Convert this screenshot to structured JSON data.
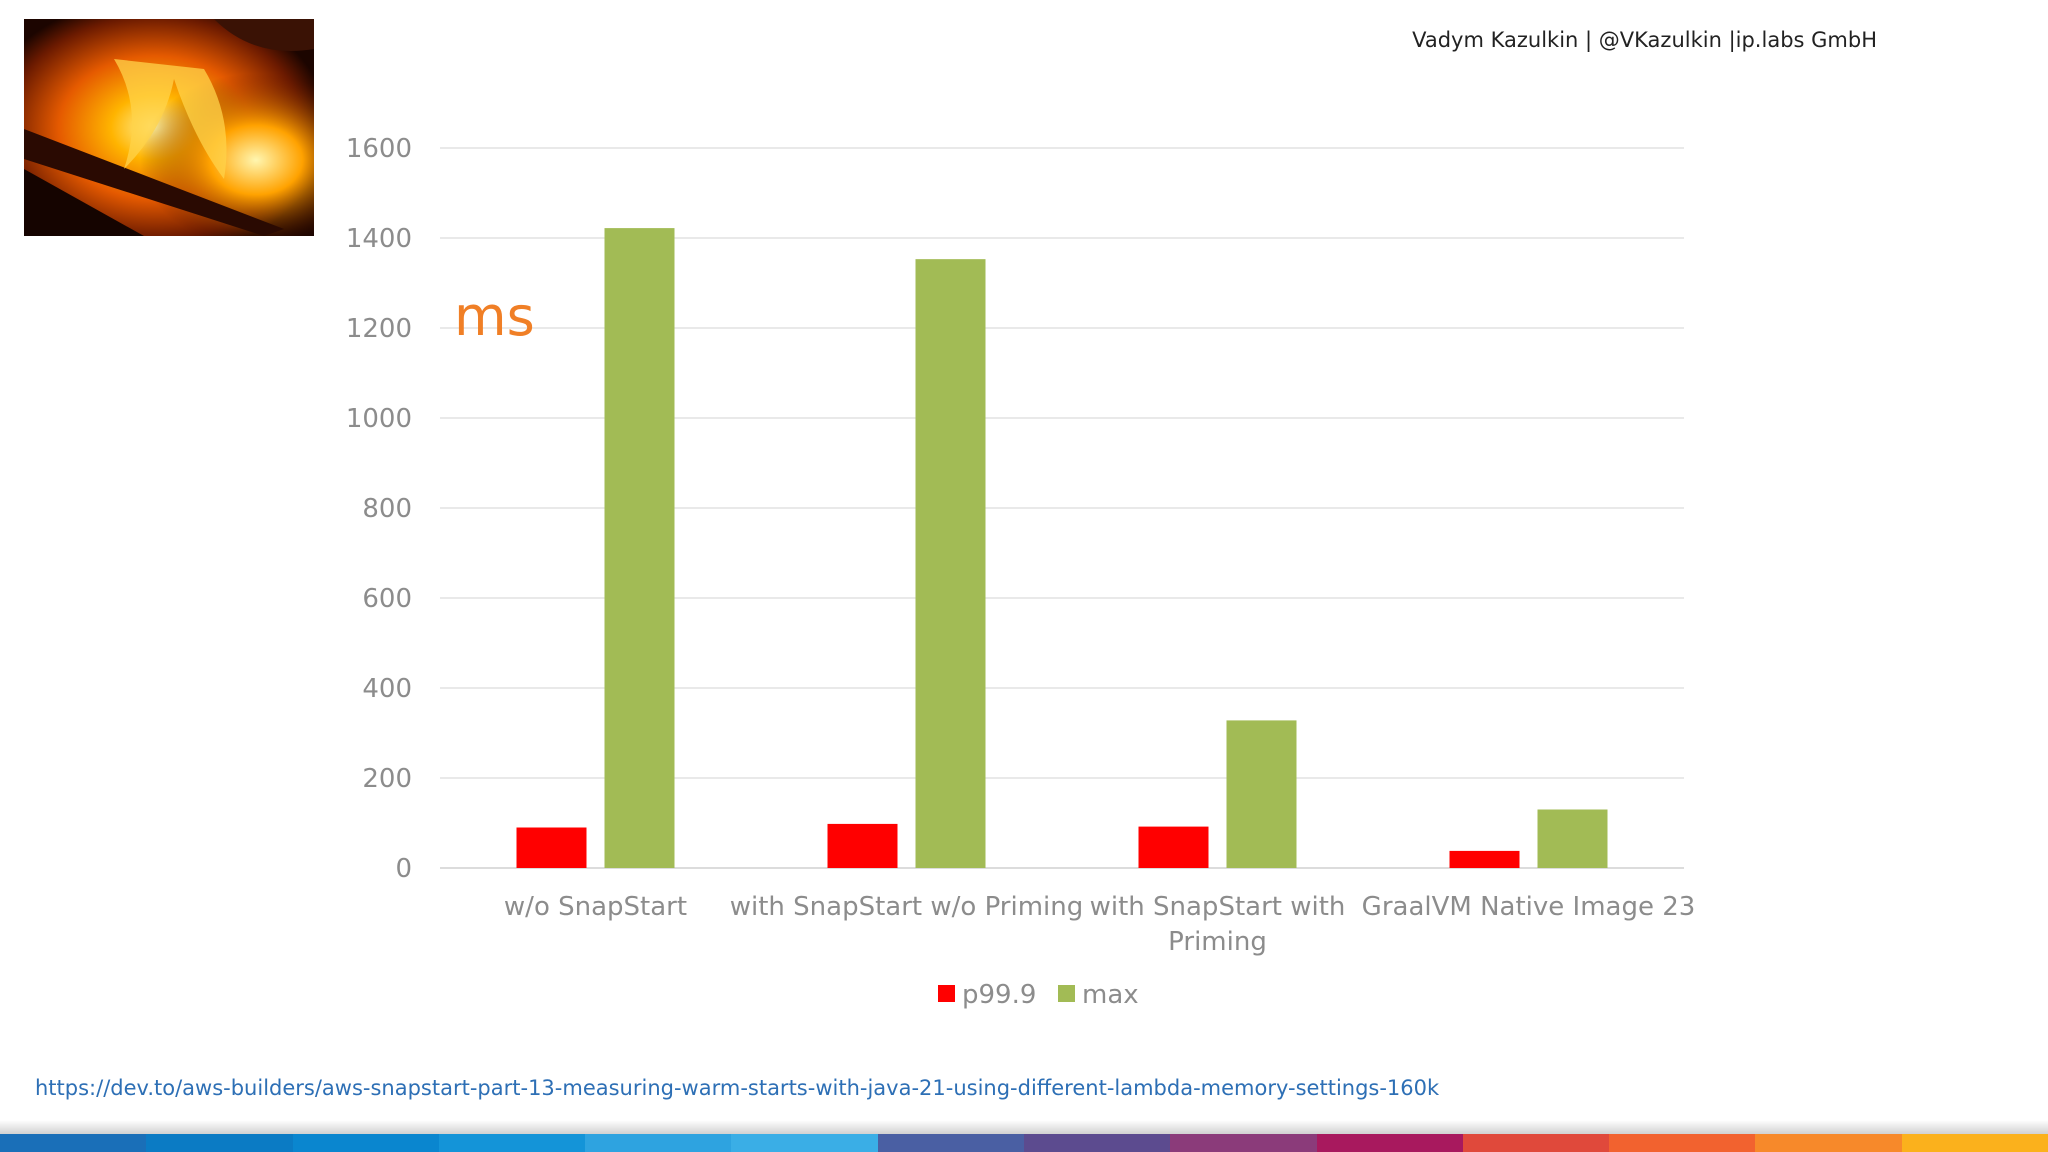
{
  "header": {
    "credit": "Vadym Kazulkin | @VKazulkin |ip.labs GmbH"
  },
  "image": {
    "icon": "fire-photo"
  },
  "chart_data": {
    "type": "bar",
    "unit_label": "ms",
    "categories": [
      "w/o SnapStart",
      "with SnapStart w/o Priming",
      [
        "with SnapStart with",
        "Priming"
      ],
      "GraalVM Native Image 23"
    ],
    "series": [
      {
        "name": "p99.9",
        "color": "#ff0000",
        "values": [
          90,
          98,
          92,
          38
        ]
      },
      {
        "name": "max",
        "color": "#a2bb55",
        "values": [
          1422,
          1353,
          328,
          130
        ]
      }
    ],
    "yticks": [
      0,
      200,
      400,
      600,
      800,
      1000,
      1200,
      1400,
      1600
    ],
    "ylim": [
      0,
      1600
    ],
    "grid": true,
    "legend": "bottom"
  },
  "footer": {
    "link": "https://dev.to/aws-builders/aws-snapstart-part-13-measuring-warm-starts-with-java-21-using-different-lambda-memory-settings-160k",
    "band_colors": [
      "#1a6fb8",
      "#0b7bc4",
      "#0a86cf",
      "#1494d8",
      "#2ea3e0",
      "#3aaee6",
      "#4a5fa3",
      "#5c4b8f",
      "#8b3b7a",
      "#a8195e",
      "#e0493b",
      "#f2622f",
      "#f7892a",
      "#fbb11c"
    ]
  }
}
